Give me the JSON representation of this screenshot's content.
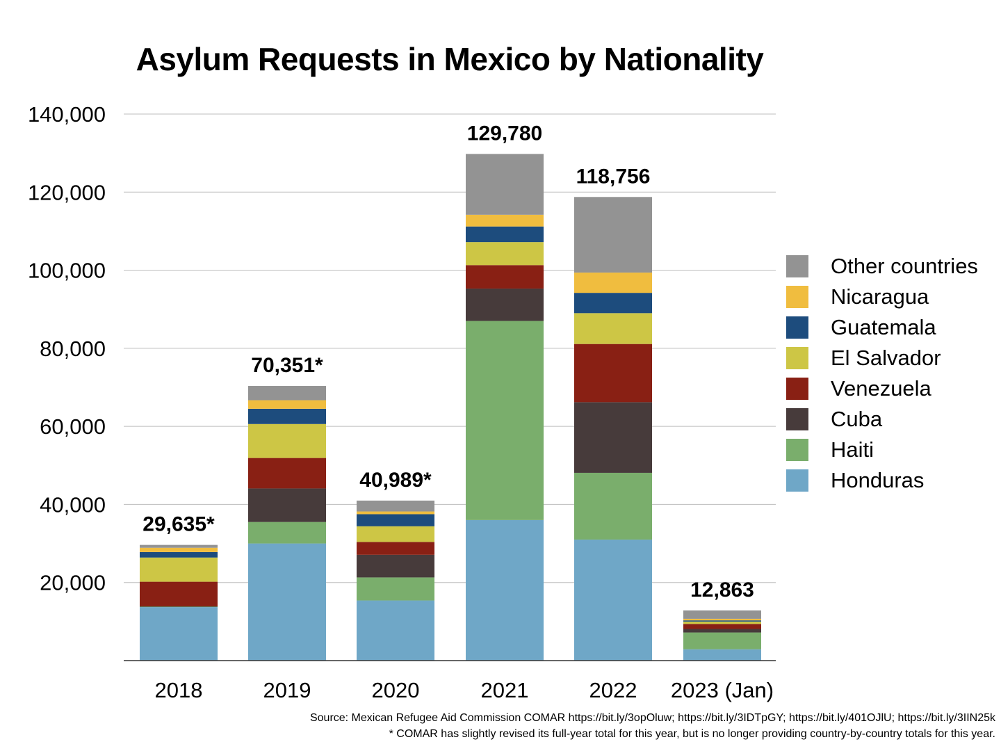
{
  "chart_data": {
    "type": "bar",
    "stacked": true,
    "title": "Asylum Requests in Mexico by Nationality",
    "xlabel": "",
    "ylabel": "",
    "ylim": [
      0,
      140000
    ],
    "yticks": [
      20000,
      40000,
      60000,
      80000,
      100000,
      120000,
      140000
    ],
    "ytick_labels": [
      "20,000",
      "40,000",
      "60,000",
      "80,000",
      "100,000",
      "120,000",
      "140,000"
    ],
    "grid": true,
    "legend_position": "right",
    "categories": [
      "2018",
      "2019",
      "2020",
      "2021",
      "2022",
      "2023 (Jan)"
    ],
    "totals": [
      29635,
      70351,
      40989,
      129780,
      118756,
      12863
    ],
    "total_labels": [
      "29,635*",
      "70,351*",
      "40,989*",
      "129,780",
      "118,756",
      "12,863"
    ],
    "series": [
      {
        "name": "Honduras",
        "color": "#6fa7c7",
        "values": [
          13700,
          30000,
          15400,
          36000,
          31000,
          2900
        ]
      },
      {
        "name": "Haiti",
        "color": "#7aae6c",
        "values": [
          100,
          5500,
          5900,
          51000,
          17100,
          4300
        ]
      },
      {
        "name": "Cuba",
        "color": "#473b3b",
        "values": [
          100,
          8600,
          5800,
          8300,
          18100,
          900
        ]
      },
      {
        "name": "Venezuela",
        "color": "#892014",
        "values": [
          6300,
          7800,
          3300,
          6000,
          14900,
          1300
        ]
      },
      {
        "name": "El Salvador",
        "color": "#cdc645",
        "values": [
          6200,
          8700,
          4000,
          5900,
          7900,
          600
        ]
      },
      {
        "name": "Guatemala",
        "color": "#1d4c7d",
        "values": [
          1400,
          3900,
          3100,
          4000,
          5200,
          300
        ]
      },
      {
        "name": "Nicaragua",
        "color": "#f0bd3f",
        "values": [
          1100,
          2200,
          700,
          3000,
          5200,
          400
        ]
      },
      {
        "name": "Other countries",
        "color": "#939393",
        "values": [
          735,
          3651,
          2789,
          15580,
          19356,
          2163
        ]
      }
    ]
  },
  "source": "Source: Mexican Refugee Aid Commission COMAR https://bit.ly/3opOluw; https://bit.ly/3IDTpGY; https://bit.ly/401OJlU; https://bit.ly/3IIN25k",
  "footnote": "* COMAR has slightly revised its full-year total for this year, but is no longer providing country-by-country totals for this year."
}
